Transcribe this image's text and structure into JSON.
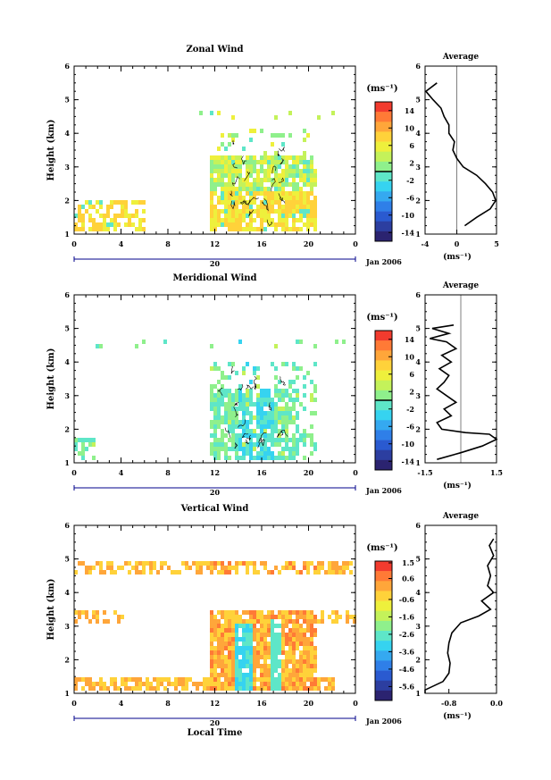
{
  "figure": {
    "date_label": "Jan 2006",
    "day_label": "20",
    "xlabel_bottom": "Local Time",
    "colors": {
      "scale": [
        "#2b2370",
        "#2c3ea0",
        "#2a5ad0",
        "#2f7fe8",
        "#35a9f0",
        "#36d3f0",
        "#5ee6c8",
        "#8ff08c",
        "#c4f25a",
        "#eef03c",
        "#ffd23a",
        "#ffa63a",
        "#ff7a36",
        "#f23b2e"
      ],
      "axis": "#000000",
      "time_axis": "#00008b"
    }
  },
  "chart_data": [
    {
      "type": "heatmap",
      "title": "Zonal Wind",
      "ylabel": "Height (km)",
      "xlabel": "",
      "x_ticks": [
        "0",
        "4",
        "8",
        "12",
        "16",
        "20",
        "0"
      ],
      "xlim": [
        0,
        24
      ],
      "y_ticks": [
        "1",
        "2",
        "3",
        "4",
        "5",
        "6"
      ],
      "ylim": [
        1,
        6
      ],
      "colorbar": {
        "unit": "(ms⁻¹)",
        "ticks": [
          "14",
          "10",
          "6",
          "2",
          "-2",
          "-6",
          "-10",
          "-14"
        ],
        "range": [
          -16,
          16
        ],
        "zero_line": 0
      },
      "contours": true,
      "profile": {
        "title": "Average",
        "xlabel": "(ms⁻¹)",
        "x_ticks": [
          "-4",
          "0",
          "5"
        ],
        "xlim": [
          -4,
          5
        ],
        "ylim": [
          1,
          6
        ],
        "zero_line": 0,
        "points": [
          [
            -2.5,
            5.5
          ],
          [
            -3.9,
            5.25
          ],
          [
            -3.0,
            5.0
          ],
          [
            -2.0,
            4.75
          ],
          [
            -1.6,
            4.5
          ],
          [
            -1.0,
            4.25
          ],
          [
            -1.0,
            4.0
          ],
          [
            -0.3,
            3.75
          ],
          [
            -0.5,
            3.5
          ],
          [
            0.0,
            3.25
          ],
          [
            0.8,
            3.0
          ],
          [
            2.5,
            2.75
          ],
          [
            3.6,
            2.5
          ],
          [
            4.5,
            2.25
          ],
          [
            4.9,
            2.0
          ],
          [
            4.2,
            1.75
          ],
          [
            2.5,
            1.5
          ],
          [
            1.0,
            1.25
          ]
        ]
      }
    },
    {
      "type": "heatmap",
      "title": "Meridional Wind",
      "ylabel": "Height (km)",
      "xlabel": "",
      "x_ticks": [
        "0",
        "4",
        "8",
        "12",
        "16",
        "20",
        "0"
      ],
      "xlim": [
        0,
        24
      ],
      "y_ticks": [
        "1",
        "2",
        "3",
        "4",
        "5",
        "6"
      ],
      "ylim": [
        1,
        6
      ],
      "colorbar": {
        "unit": "(ms⁻¹)",
        "ticks": [
          "14",
          "10",
          "6",
          "2",
          "-2",
          "-6",
          "-10",
          "-14"
        ],
        "range": [
          -16,
          16
        ],
        "zero_line": 0
      },
      "contours": true,
      "profile": {
        "title": "Average",
        "xlabel": "(ms⁻¹)",
        "x_ticks": [
          "-1.5",
          "1.5"
        ],
        "xlim": [
          -1.5,
          1.5
        ],
        "ylim": [
          1,
          6
        ],
        "zero_line": 0,
        "points": [
          [
            -0.3,
            5.1
          ],
          [
            -1.2,
            5.0
          ],
          [
            -0.5,
            4.85
          ],
          [
            -1.3,
            4.7
          ],
          [
            -0.6,
            4.6
          ],
          [
            -0.2,
            4.4
          ],
          [
            -0.8,
            4.2
          ],
          [
            -0.4,
            4.0
          ],
          [
            -0.9,
            3.8
          ],
          [
            -0.5,
            3.6
          ],
          [
            -0.7,
            3.4
          ],
          [
            -1.0,
            3.2
          ],
          [
            -0.6,
            3.0
          ],
          [
            -0.2,
            2.8
          ],
          [
            -0.7,
            2.6
          ],
          [
            -0.4,
            2.4
          ],
          [
            -1.0,
            2.2
          ],
          [
            -0.8,
            2.0
          ],
          [
            0.2,
            1.9
          ],
          [
            1.2,
            1.85
          ],
          [
            1.5,
            1.7
          ],
          [
            0.9,
            1.5
          ],
          [
            0.0,
            1.3
          ],
          [
            -1.0,
            1.1
          ]
        ]
      }
    },
    {
      "type": "heatmap",
      "title": "Vertical Wind",
      "ylabel": "Height (km)",
      "xlabel": "Local Time",
      "x_ticks": [
        "0",
        "4",
        "8",
        "12",
        "16",
        "20",
        "0"
      ],
      "xlim": [
        0,
        24
      ],
      "y_ticks": [
        "1",
        "2",
        "3",
        "4",
        "5",
        "6"
      ],
      "ylim": [
        1,
        6
      ],
      "colorbar": {
        "unit": "(ms⁻¹)",
        "ticks": [
          "1.5",
          "0.6",
          "-0.6",
          "-1.6",
          "-2.6",
          "-3.6",
          "-4.6",
          "-5.6"
        ],
        "range": [
          -6.4,
          1.6
        ],
        "zero_line": null
      },
      "contours": false,
      "profile": {
        "title": "Average",
        "xlabel": "(ms⁻¹)",
        "x_ticks": [
          "-0.8",
          "0.0"
        ],
        "xlim": [
          -1.2,
          0.0
        ],
        "ylim": [
          1,
          6
        ],
        "zero_line": null,
        "points": [
          [
            -0.05,
            5.6
          ],
          [
            -0.12,
            5.4
          ],
          [
            -0.05,
            5.1
          ],
          [
            -0.15,
            4.8
          ],
          [
            -0.1,
            4.5
          ],
          [
            -0.15,
            4.2
          ],
          [
            -0.05,
            4.0
          ],
          [
            -0.25,
            3.75
          ],
          [
            -0.1,
            3.5
          ],
          [
            -0.3,
            3.3
          ],
          [
            -0.6,
            3.1
          ],
          [
            -0.75,
            2.8
          ],
          [
            -0.8,
            2.5
          ],
          [
            -0.82,
            2.2
          ],
          [
            -0.78,
            1.9
          ],
          [
            -0.8,
            1.6
          ],
          [
            -0.9,
            1.35
          ],
          [
            -1.2,
            1.1
          ],
          [
            -1.2,
            1.0
          ]
        ]
      }
    }
  ]
}
